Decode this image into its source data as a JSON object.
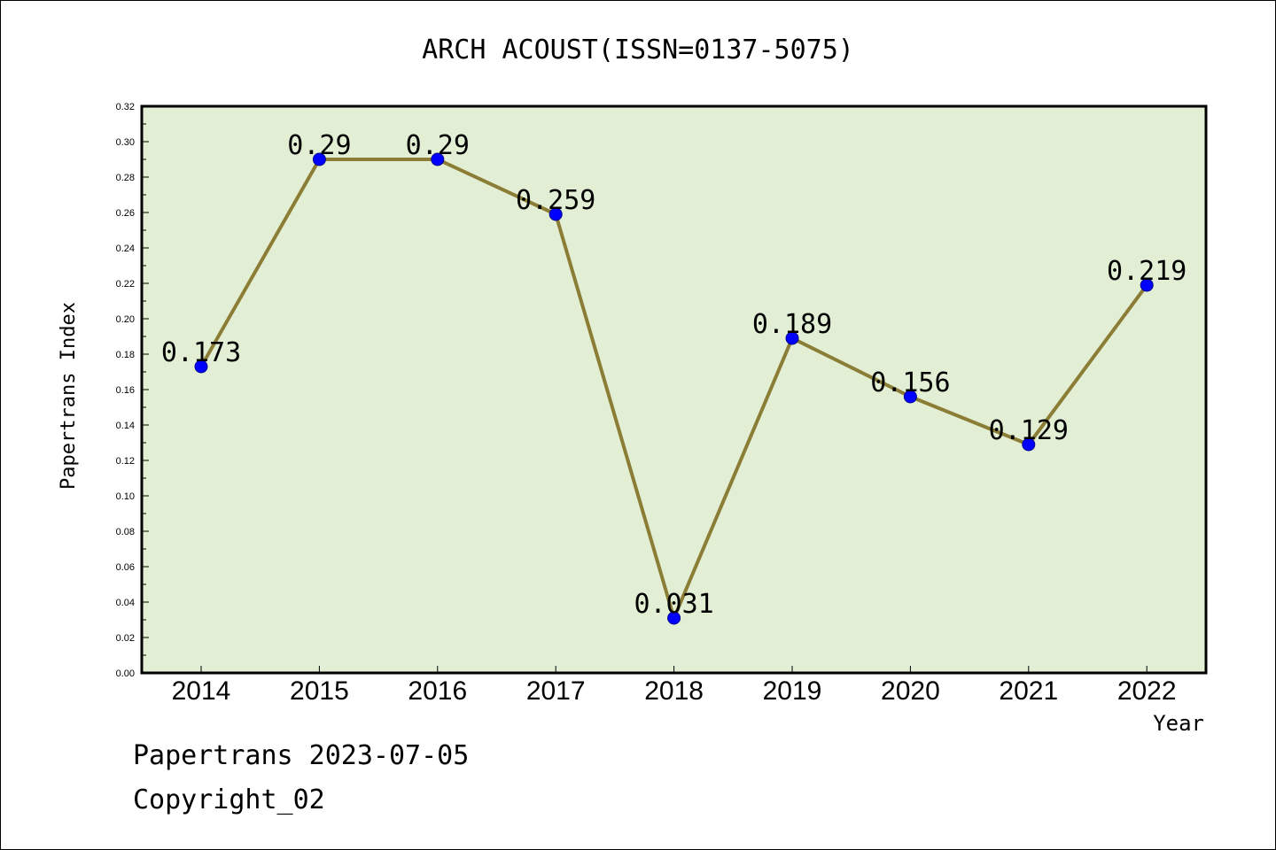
{
  "chart_data": {
    "type": "line",
    "title": "ARCH ACOUST(ISSN=0137-5075)",
    "xlabel": "Year",
    "ylabel": "Papertrans Index",
    "categories": [
      "2014",
      "2015",
      "2016",
      "2017",
      "2018",
      "2019",
      "2020",
      "2021",
      "2022"
    ],
    "series": [
      {
        "values": [
          0.173,
          0.29,
          0.29,
          0.259,
          0.031,
          0.189,
          0.156,
          0.129,
          0.219
        ],
        "labels": [
          "0.173",
          "0.29",
          "0.29",
          "0.259",
          "0.031",
          "0.189",
          "0.156",
          "0.129",
          "0.219"
        ]
      }
    ],
    "ylim": [
      0,
      0.32
    ],
    "yticks": [
      "0.00",
      "0.02",
      "0.04",
      "0.06",
      "0.08",
      "0.10",
      "0.12",
      "0.14",
      "0.16",
      "0.18",
      "0.20",
      "0.22",
      "0.24",
      "0.26",
      "0.28",
      "0.30",
      "0.32"
    ],
    "grid": false,
    "legend": "none",
    "colors": {
      "plot_background": "#e2efd5",
      "line": "#8b7d35",
      "marker": "#0000ff"
    }
  },
  "footer": {
    "line1": "Papertrans 2023-07-05",
    "line2": "Copyright_02"
  }
}
